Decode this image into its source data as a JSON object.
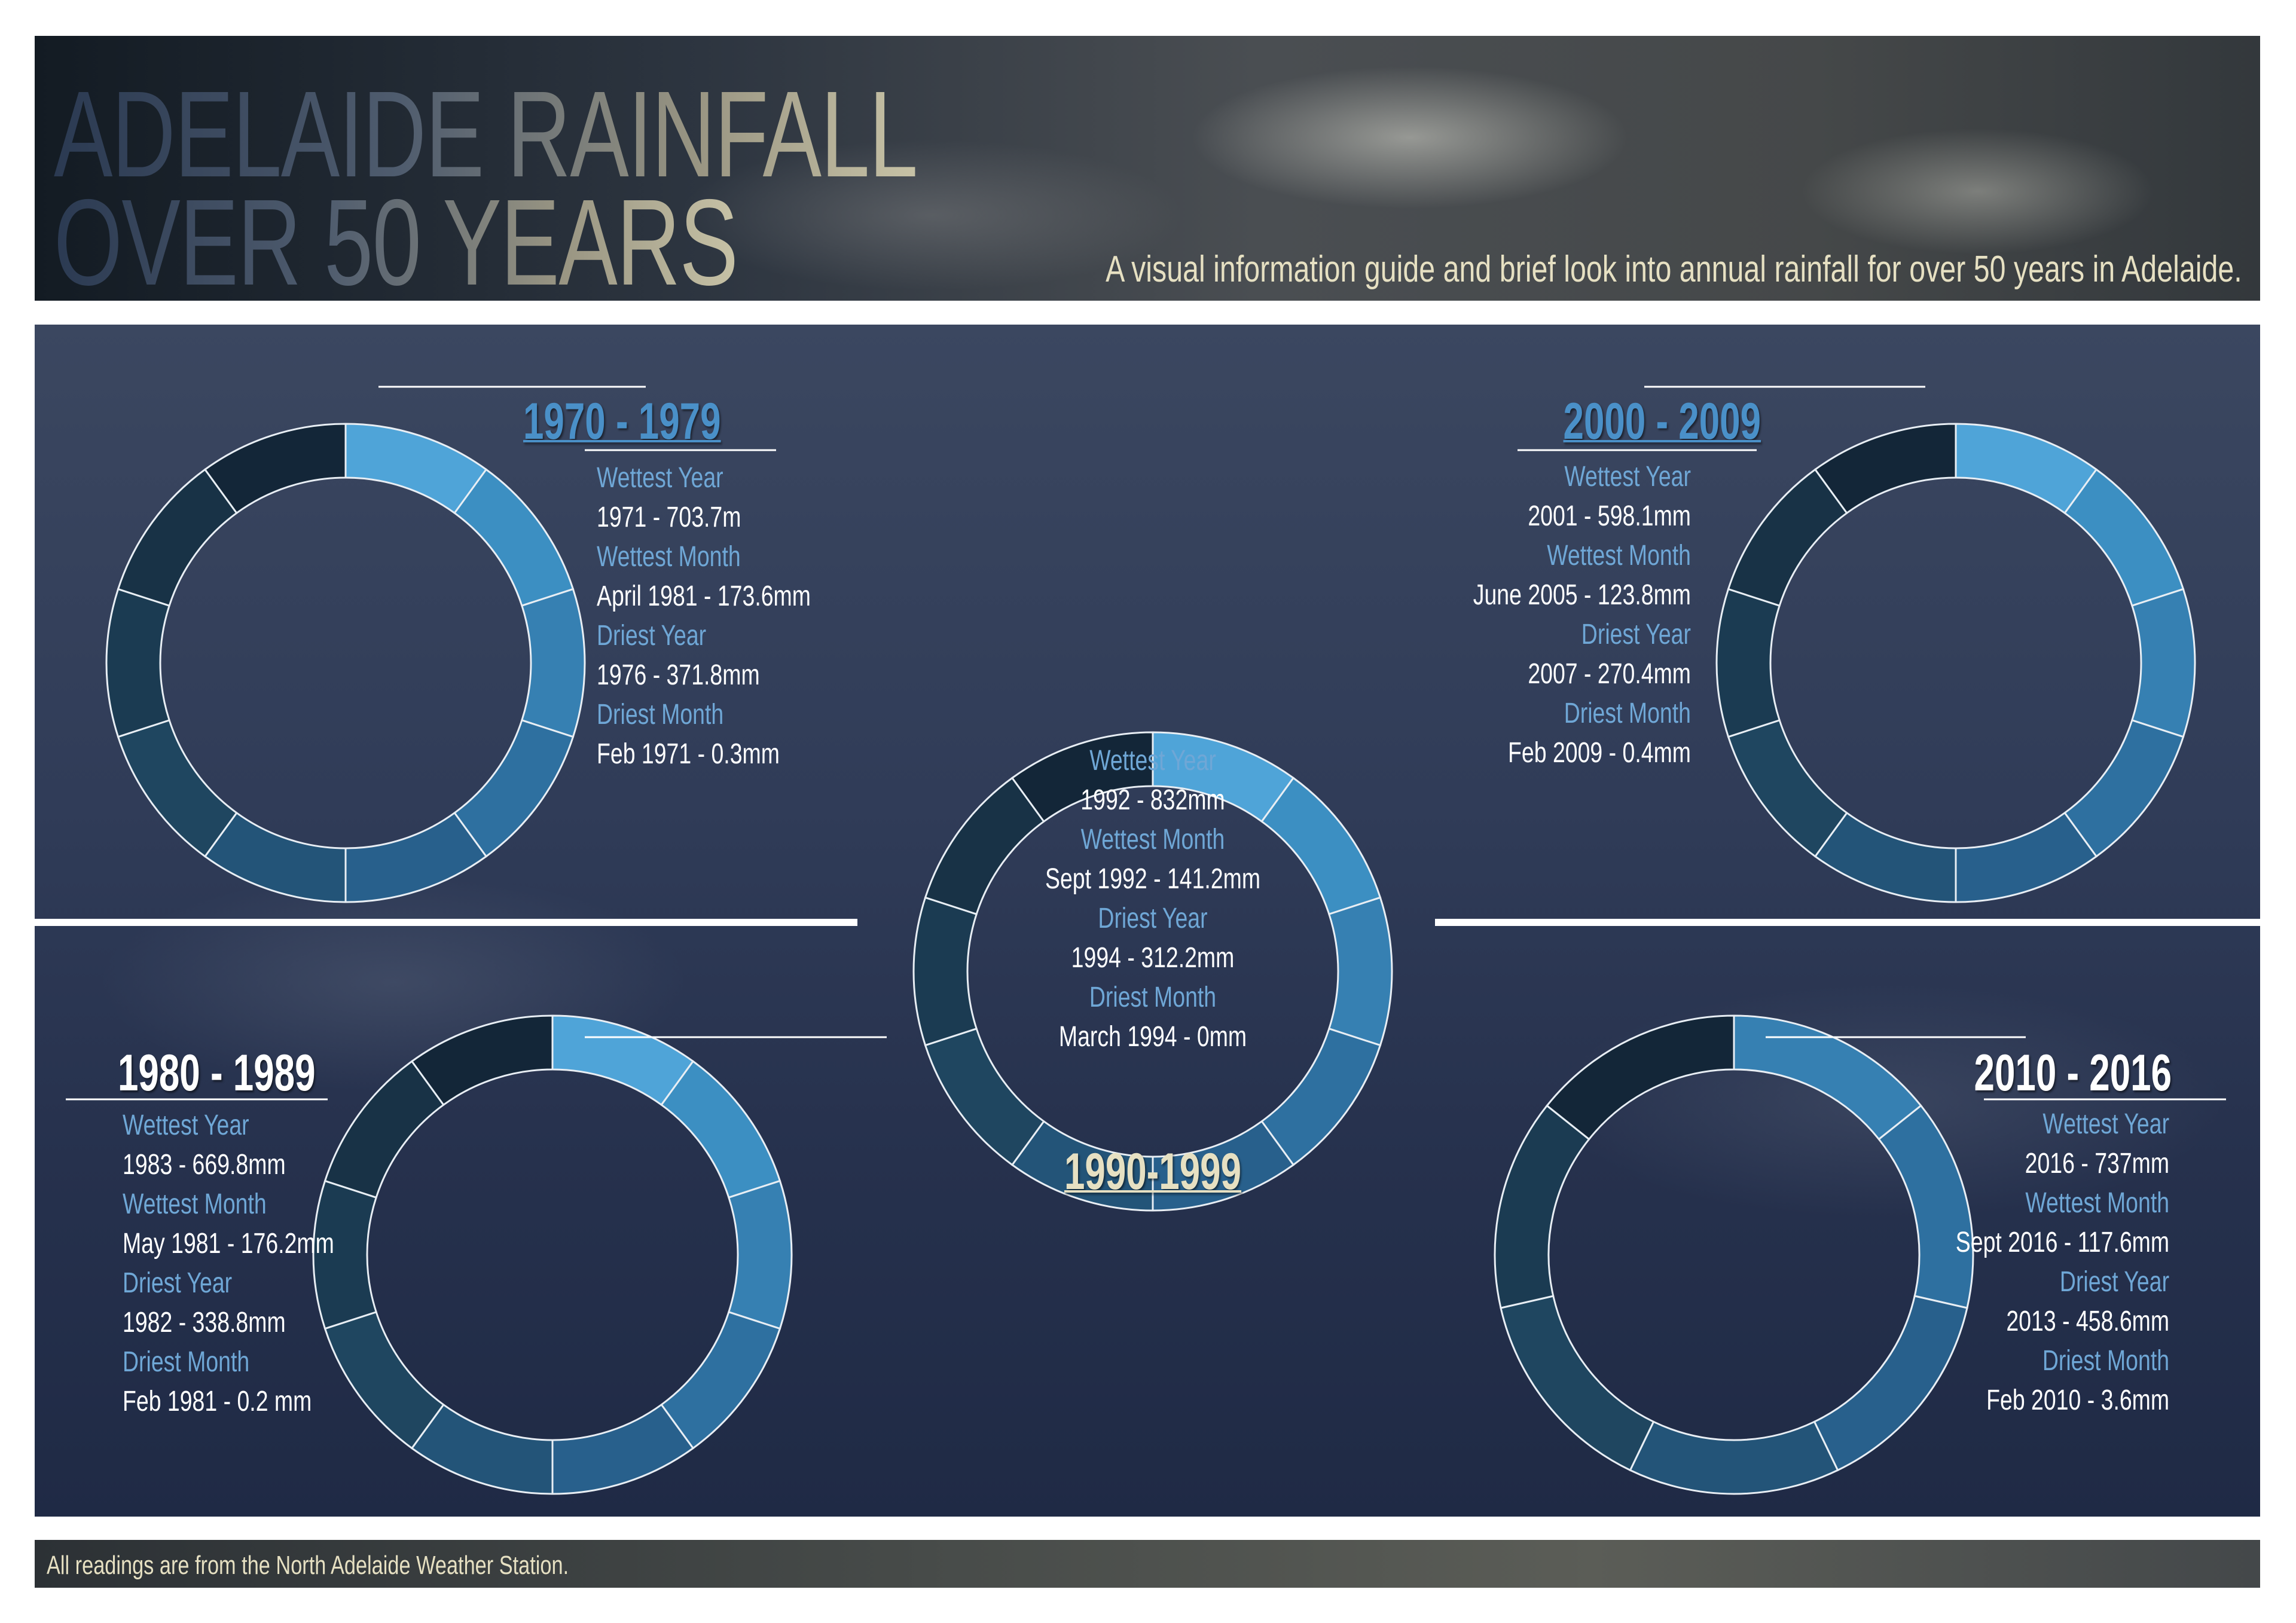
{
  "header": {
    "title_line1": "ADELAIDE RAINFALL",
    "title_line2": "OVER 50 YEARS",
    "subtitle": "A visual information guide and brief look into annual rainfall for over 50 years in Adelaide."
  },
  "footer": {
    "note": "All readings are from the North Adelaide Weather Station."
  },
  "colors": {
    "label": "#6fa7d6",
    "value": "#ffffff",
    "accent_cream": "#e6e0c2"
  },
  "chart_data": [
    {
      "type": "donut",
      "title": "1970 - 1979",
      "title_color": "#4a90c8",
      "values": [
        1,
        1,
        1,
        1,
        1,
        1,
        1,
        1,
        1,
        1
      ],
      "colors": [
        "#4fa4d8",
        "#3c8fc2",
        "#3680b2",
        "#2e70a0",
        "#28608c",
        "#235478",
        "#1f4660",
        "#1b3b52",
        "#183246",
        "#132638"
      ],
      "stats": [
        {
          "label": "Wettest Year",
          "value": "1971 - 703.7m"
        },
        {
          "label": "Wettest Month",
          "value": "April 1981 - 173.6mm"
        },
        {
          "label": "Driest Year",
          "value": "1976 - 371.8mm"
        },
        {
          "label": "Driest Month",
          "value": "Feb 1971 - 0.3mm"
        }
      ]
    },
    {
      "type": "donut",
      "title": "1980 - 1989",
      "title_color": "#ffffff",
      "values": [
        1,
        1,
        1,
        1,
        1,
        1,
        1,
        1,
        1,
        1
      ],
      "colors": [
        "#4fa4d8",
        "#3c8fc2",
        "#3680b2",
        "#2e70a0",
        "#28608c",
        "#235478",
        "#1f4660",
        "#1b3b52",
        "#183246",
        "#132638"
      ],
      "stats": [
        {
          "label": "Wettest Year",
          "value": "1983 - 669.8mm"
        },
        {
          "label": "Wettest Month",
          "value": "May 1981 - 176.2mm"
        },
        {
          "label": "Driest Year",
          "value": "1982 - 338.8mm"
        },
        {
          "label": "Driest Month",
          "value": "Feb 1981 - 0.2 mm"
        }
      ]
    },
    {
      "type": "donut",
      "title": "1990-1999",
      "title_color": "#e6e0c2",
      "values": [
        1,
        1,
        1,
        1,
        1,
        1,
        1,
        1,
        1,
        1
      ],
      "colors": [
        "#4fa4d8",
        "#3c8fc2",
        "#3680b2",
        "#2e70a0",
        "#28608c",
        "#235478",
        "#1f4660",
        "#1b3b52",
        "#183246",
        "#132638"
      ],
      "stats": [
        {
          "label": "Wettest Year",
          "value": "1992 - 832mm"
        },
        {
          "label": "Wettest Month",
          "value": "Sept 1992 - 141.2mm"
        },
        {
          "label": "Driest Year",
          "value": "1994 - 312.2mm"
        },
        {
          "label": "Driest Month",
          "value": "March 1994 - 0mm"
        }
      ]
    },
    {
      "type": "donut",
      "title": "2000 - 2009",
      "title_color": "#4a90c8",
      "values": [
        1,
        1,
        1,
        1,
        1,
        1,
        1,
        1,
        1,
        1
      ],
      "colors": [
        "#4fa4d8",
        "#3c8fc2",
        "#3680b2",
        "#2e70a0",
        "#28608c",
        "#235478",
        "#1f4660",
        "#1b3b52",
        "#183246",
        "#132638"
      ],
      "stats": [
        {
          "label": "Wettest Year",
          "value": "2001 - 598.1mm"
        },
        {
          "label": "Wettest Month",
          "value": "June 2005 - 123.8mm"
        },
        {
          "label": "Driest Year",
          "value": "2007 - 270.4mm"
        },
        {
          "label": "Driest Month",
          "value": "Feb 2009 - 0.4mm"
        }
      ]
    },
    {
      "type": "donut",
      "title": "2010 - 2016",
      "title_color": "#ffffff",
      "values": [
        1,
        1,
        1,
        1,
        1,
        1,
        1
      ],
      "colors": [
        "#3680b2",
        "#2e70a0",
        "#28608c",
        "#235478",
        "#1f4660",
        "#1b3b52",
        "#132638"
      ],
      "stats": [
        {
          "label": "Wettest Year",
          "value": "2016 - 737mm"
        },
        {
          "label": "Wettest Month",
          "value": "Sept 2016 - 117.6mm"
        },
        {
          "label": "Driest Year",
          "value": "2013 - 458.6mm"
        },
        {
          "label": "Driest Month",
          "value": "Feb 2010 - 3.6mm"
        }
      ]
    }
  ]
}
